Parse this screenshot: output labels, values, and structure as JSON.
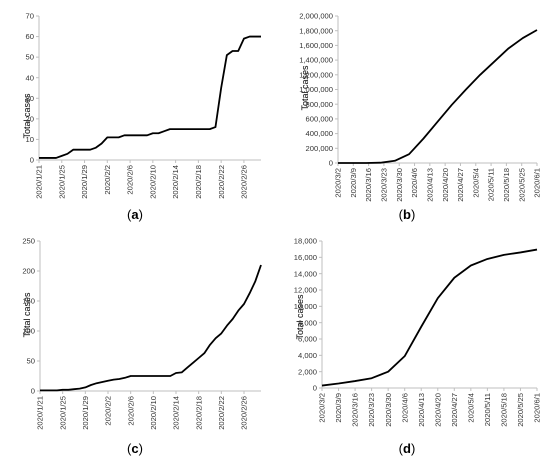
{
  "figure": {
    "panels": [
      {
        "label": "a"
      },
      {
        "label": "b"
      },
      {
        "label": "c"
      },
      {
        "label": "d"
      }
    ]
  },
  "chart_data": [
    {
      "type": "line",
      "panel": "a",
      "ylabel": "Total cases",
      "xlabel": "",
      "ylim": [
        0,
        70
      ],
      "yticks": [
        0,
        10,
        20,
        30,
        40,
        50,
        60,
        70
      ],
      "ytick_labels": [
        "0",
        "10",
        "20",
        "30",
        "40",
        "50",
        "60",
        "70"
      ],
      "x_categories": [
        "2020/1/21",
        "2020/1/22",
        "2020/1/23",
        "2020/1/24",
        "2020/1/25",
        "2020/1/26",
        "2020/1/27",
        "2020/1/28",
        "2020/1/29",
        "2020/1/30",
        "2020/1/31",
        "2020/2/1",
        "2020/2/2",
        "2020/2/3",
        "2020/2/4",
        "2020/2/5",
        "2020/2/6",
        "2020/2/7",
        "2020/2/8",
        "2020/2/9",
        "2020/2/10",
        "2020/2/11",
        "2020/2/12",
        "2020/2/13",
        "2020/2/14",
        "2020/2/15",
        "2020/2/16",
        "2020/2/17",
        "2020/2/18",
        "2020/2/19",
        "2020/2/20",
        "2020/2/21",
        "2020/2/22",
        "2020/2/23",
        "2020/2/24",
        "2020/2/25",
        "2020/2/26",
        "2020/2/27",
        "2020/2/28",
        "2020/2/29"
      ],
      "x_tick_labels": [
        "2020/1/21",
        "2020/1/25",
        "2020/1/29",
        "2020/2/2",
        "2020/2/6",
        "2020/2/10",
        "2020/2/14",
        "2020/2/18",
        "2020/2/22",
        "2020/2/26"
      ],
      "grid": false,
      "legend": "none",
      "series": [
        {
          "values": [
            1,
            1,
            1,
            1,
            2,
            3,
            5,
            5,
            5,
            5,
            6,
            8,
            11,
            11,
            11,
            12,
            12,
            12,
            12,
            12,
            13,
            13,
            14,
            15,
            15,
            15,
            15,
            15,
            15,
            15,
            15,
            16,
            35,
            51,
            53,
            53,
            59,
            60,
            60,
            60
          ]
        }
      ]
    },
    {
      "type": "line",
      "panel": "b",
      "ylabel": "Total cases",
      "xlabel": "",
      "ylim": [
        0,
        2000000
      ],
      "yticks": [
        0,
        200000,
        400000,
        600000,
        800000,
        1000000,
        1200000,
        1400000,
        1600000,
        1800000,
        2000000
      ],
      "ytick_labels": [
        "0",
        "200,000",
        "400,000",
        "600,000",
        "800,000",
        "1,000,000",
        "1,200,000",
        "1,400,000",
        "1,600,000",
        "1,800,000",
        "2,000,000"
      ],
      "x_range": [
        "2020/3/2",
        "2020/6/1"
      ],
      "x_tick_labels": [
        "2020/3/2",
        "2020/3/9",
        "2020/3/16",
        "2020/3/23",
        "2020/3/30",
        "2020/4/6",
        "2020/4/13",
        "2020/4/20",
        "2020/4/27",
        "2020/5/4",
        "2020/5/11",
        "2020/5/18",
        "2020/5/25",
        "2020/6/1"
      ],
      "grid": false,
      "legend": "none",
      "series": [
        {
          "values": [
            0,
            0,
            0,
            4000,
            30000,
            120000,
            330000,
            560000,
            790000,
            1000000,
            1200000,
            1380000,
            1560000,
            1700000,
            1810000
          ]
        }
      ]
    },
    {
      "type": "line",
      "panel": "c",
      "ylabel": "Total cases",
      "xlabel": "",
      "ylim": [
        0,
        250
      ],
      "yticks": [
        0,
        50,
        100,
        150,
        200,
        250
      ],
      "ytick_labels": [
        "0",
        "50",
        "100",
        "150",
        "200",
        "250"
      ],
      "x_categories": [
        "2020/1/21",
        "2020/1/22",
        "2020/1/23",
        "2020/1/24",
        "2020/1/25",
        "2020/1/26",
        "2020/1/27",
        "2020/1/28",
        "2020/1/29",
        "2020/1/30",
        "2020/1/31",
        "2020/2/1",
        "2020/2/2",
        "2020/2/3",
        "2020/2/4",
        "2020/2/5",
        "2020/2/6",
        "2020/2/7",
        "2020/2/8",
        "2020/2/9",
        "2020/2/10",
        "2020/2/11",
        "2020/2/12",
        "2020/2/13",
        "2020/2/14",
        "2020/2/15",
        "2020/2/16",
        "2020/2/17",
        "2020/2/18",
        "2020/2/19",
        "2020/2/20",
        "2020/2/21",
        "2020/2/22",
        "2020/2/23",
        "2020/2/24",
        "2020/2/25",
        "2020/2/26",
        "2020/2/27",
        "2020/2/28",
        "2020/2/29"
      ],
      "x_tick_labels": [
        "2020/1/21",
        "2020/1/25",
        "2020/1/29",
        "2020/2/2",
        "2020/2/6",
        "2020/2/10",
        "2020/2/14",
        "2020/2/18",
        "2020/2/22",
        "2020/2/26"
      ],
      "grid": false,
      "legend": "none",
      "series": [
        {
          "values": [
            1,
            1,
            1,
            1,
            2,
            2,
            3,
            4,
            6,
            10,
            13,
            15,
            17,
            19,
            20,
            22,
            25,
            25,
            25,
            25,
            25,
            25,
            25,
            25,
            30,
            31,
            39,
            47,
            55,
            63,
            77,
            88,
            96,
            109,
            120,
            134,
            145,
            163,
            183,
            210
          ]
        }
      ]
    },
    {
      "type": "line",
      "panel": "d",
      "ylabel": "Total cases",
      "xlabel": "",
      "ylim": [
        0,
        18000
      ],
      "yticks": [
        0,
        2000,
        4000,
        6000,
        8000,
        10000,
        12000,
        14000,
        16000,
        18000
      ],
      "ytick_labels": [
        "0",
        "2,000",
        "4,000",
        "6,000",
        "8,000",
        "10,000",
        "12,000",
        "14,000",
        "16,000",
        "18,000"
      ],
      "x_range": [
        "2020/3/2",
        "2020/6/1"
      ],
      "x_tick_labels": [
        "2020/3/2",
        "2020/3/9",
        "2020/3/16",
        "2020/3/23",
        "2020/3/30",
        "2020/4/6",
        "2020/4/13",
        "2020/4/20",
        "2020/4/27",
        "2020/5/4",
        "2020/5/11",
        "2020/5/18",
        "2020/5/25",
        "2020/6/1"
      ],
      "grid": false,
      "legend": "none",
      "series": [
        {
          "values": [
            300,
            550,
            850,
            1200,
            2000,
            3900,
            7500,
            11000,
            13500,
            15000,
            15800,
            16300,
            16600,
            16950
          ]
        }
      ]
    }
  ]
}
